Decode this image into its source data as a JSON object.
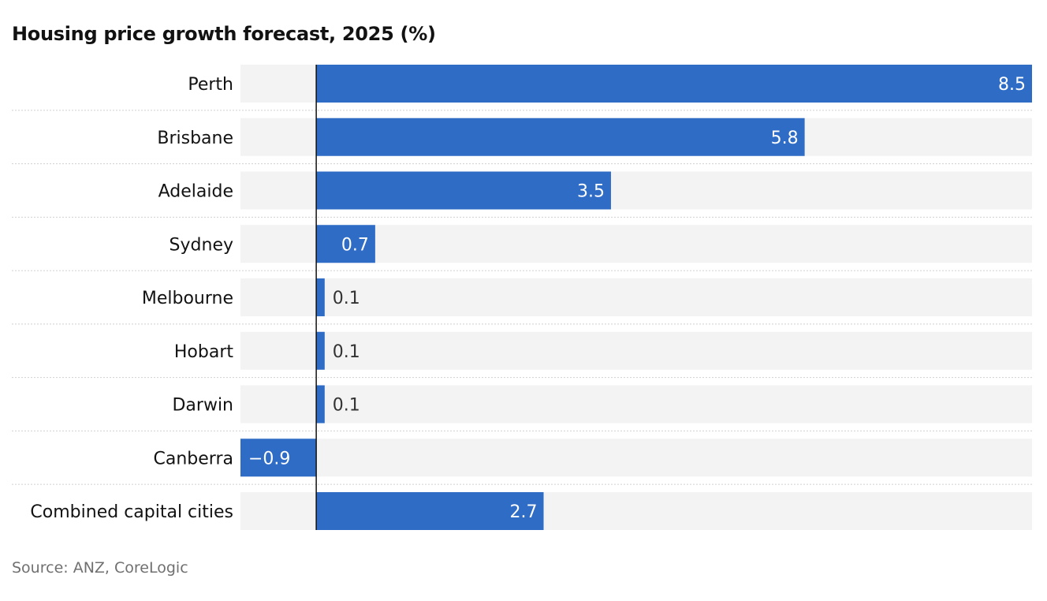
{
  "title": "Housing price growth forecast, 2025 (%)",
  "source": "Source: ANZ, CoreLogic",
  "colors": {
    "bar": "#2f6cc6",
    "track": "#f3f3f3",
    "label_inside": "#ffffff",
    "label_outside": "#333333",
    "text": "#121212",
    "separator": "#d0d0d0",
    "axis": "#121212"
  },
  "chart_data": {
    "type": "bar",
    "orientation": "horizontal",
    "categories": [
      "Perth",
      "Brisbane",
      "Adelaide",
      "Sydney",
      "Melbourne",
      "Hobart",
      "Darwin",
      "Canberra",
      "Combined capital cities"
    ],
    "values": [
      8.5,
      5.8,
      3.5,
      0.7,
      0.1,
      0.1,
      0.1,
      -0.9,
      2.7
    ],
    "value_labels": [
      "8.5",
      "5.8",
      "3.5",
      "0.7",
      "0.1",
      "0.1",
      "0.1",
      "−0.9",
      "2.7"
    ],
    "xlim": [
      -0.9,
      8.5
    ],
    "grid": false,
    "legend": "none"
  }
}
